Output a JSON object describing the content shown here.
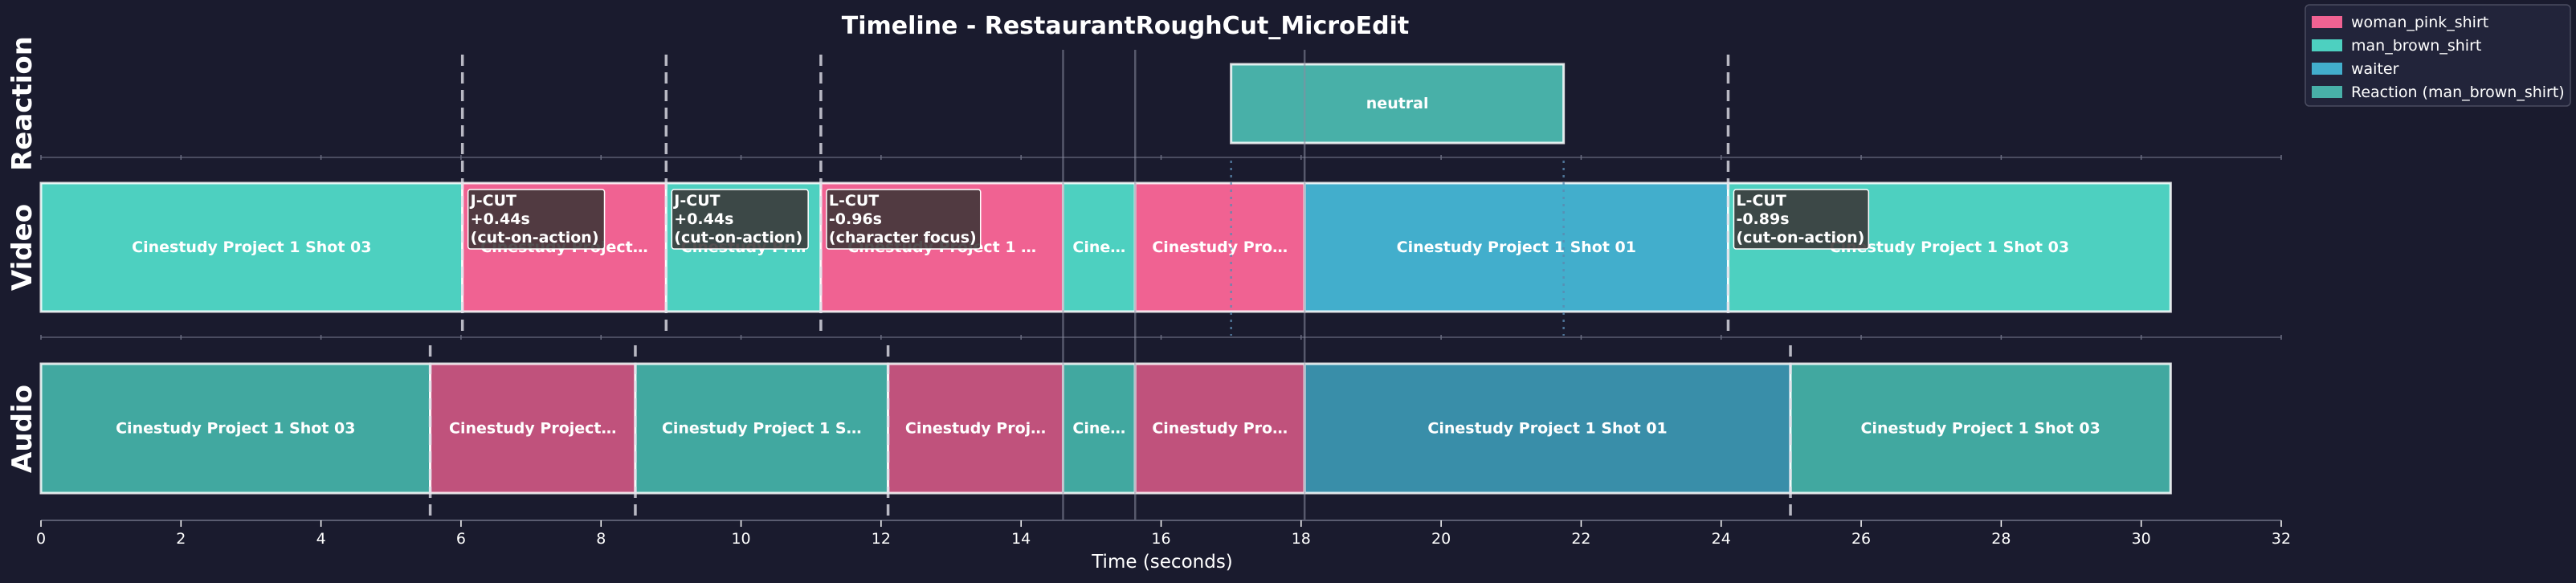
{
  "chart_data": {
    "type": "timeline",
    "title": "Timeline - RestaurantRoughCut_MicroEdit",
    "xlabel": "Time (seconds)",
    "xlim": [
      0,
      32
    ],
    "xticks": [
      0,
      2,
      4,
      6,
      8,
      10,
      12,
      14,
      16,
      18,
      20,
      22,
      24,
      26,
      28,
      30,
      32
    ],
    "colors": {
      "woman_pink_shirt": "#f06292",
      "man_brown_shirt": "#4dd0c0",
      "waiter": "#42aecc",
      "reaction": "#48b0a8",
      "background": "#1a1b2e"
    },
    "tracks": [
      {
        "name": "Reaction",
        "clips": [
          {
            "start": 17.0,
            "end": 21.75,
            "label": "neutral",
            "character": "reaction"
          }
        ]
      },
      {
        "name": "Video",
        "clips": [
          {
            "start": 0.0,
            "end": 6.02,
            "label": "Cinestudy Project 1 Shot 03",
            "character": "man_brown_shirt"
          },
          {
            "start": 6.02,
            "end": 8.93,
            "label": "Cinestudy Project…",
            "character": "woman_pink_shirt"
          },
          {
            "start": 8.93,
            "end": 11.14,
            "label": "Cinestudy Pr…",
            "character": "man_brown_shirt"
          },
          {
            "start": 11.14,
            "end": 14.6,
            "label": "Cinestudy Project 1 …",
            "character": "woman_pink_shirt"
          },
          {
            "start": 14.6,
            "end": 15.63,
            "label": "Cine…",
            "character": "man_brown_shirt"
          },
          {
            "start": 15.63,
            "end": 18.05,
            "label": "Cinestudy Pro…",
            "character": "woman_pink_shirt"
          },
          {
            "start": 18.05,
            "end": 24.1,
            "label": "Cinestudy Project 1 Shot 01",
            "character": "waiter"
          },
          {
            "start": 24.1,
            "end": 30.42,
            "label": "Cinestudy Project 1 Shot 03",
            "character": "man_brown_shirt"
          }
        ]
      },
      {
        "name": "Audio",
        "clips": [
          {
            "start": 0.0,
            "end": 5.56,
            "label": "Cinestudy Project 1 Shot 03",
            "character": "man_brown_shirt"
          },
          {
            "start": 5.56,
            "end": 8.49,
            "label": "Cinestudy Project…",
            "character": "woman_pink_shirt"
          },
          {
            "start": 8.49,
            "end": 12.1,
            "label": "Cinestudy Project 1 S…",
            "character": "man_brown_shirt"
          },
          {
            "start": 12.1,
            "end": 14.6,
            "label": "Cinestudy Proj…",
            "character": "woman_pink_shirt"
          },
          {
            "start": 14.6,
            "end": 15.63,
            "label": "Cine…",
            "character": "man_brown_shirt"
          },
          {
            "start": 15.63,
            "end": 18.05,
            "label": "Cinestudy Pro…",
            "character": "woman_pink_shirt"
          },
          {
            "start": 18.05,
            "end": 24.99,
            "label": "Cinestudy Project 1 Shot 01",
            "character": "waiter"
          },
          {
            "start": 24.99,
            "end": 30.42,
            "label": "Cinestudy Project 1 Shot 03",
            "character": "man_brown_shirt"
          }
        ]
      }
    ],
    "video_cut_markers": [
      6.02,
      8.93,
      11.14,
      24.1
    ],
    "audio_cut_markers": [
      5.56,
      8.49,
      12.1,
      24.99
    ],
    "solid_cut_lines": [
      14.6,
      15.63,
      18.05
    ],
    "reaction_markers": [
      17.0,
      21.75
    ],
    "annotations": [
      {
        "x": 6.02,
        "lines": [
          "J-CUT",
          "+0.44s",
          "(cut-on-action)"
        ]
      },
      {
        "x": 8.93,
        "lines": [
          "J-CUT",
          "+0.44s",
          "(cut-on-action)"
        ]
      },
      {
        "x": 11.14,
        "lines": [
          "L-CUT",
          "-0.96s",
          "(character focus)"
        ]
      },
      {
        "x": 24.1,
        "lines": [
          "L-CUT",
          "-0.89s",
          "(cut-on-action)"
        ]
      }
    ],
    "legend": {
      "placement": "top-right",
      "entries": [
        {
          "label": "woman_pink_shirt",
          "color": "#f06292"
        },
        {
          "label": "man_brown_shirt",
          "color": "#4dd0c0"
        },
        {
          "label": "waiter",
          "color": "#42aecc"
        },
        {
          "label": "Reaction (man_brown_shirt)",
          "color": "#48b0a8"
        }
      ]
    }
  }
}
